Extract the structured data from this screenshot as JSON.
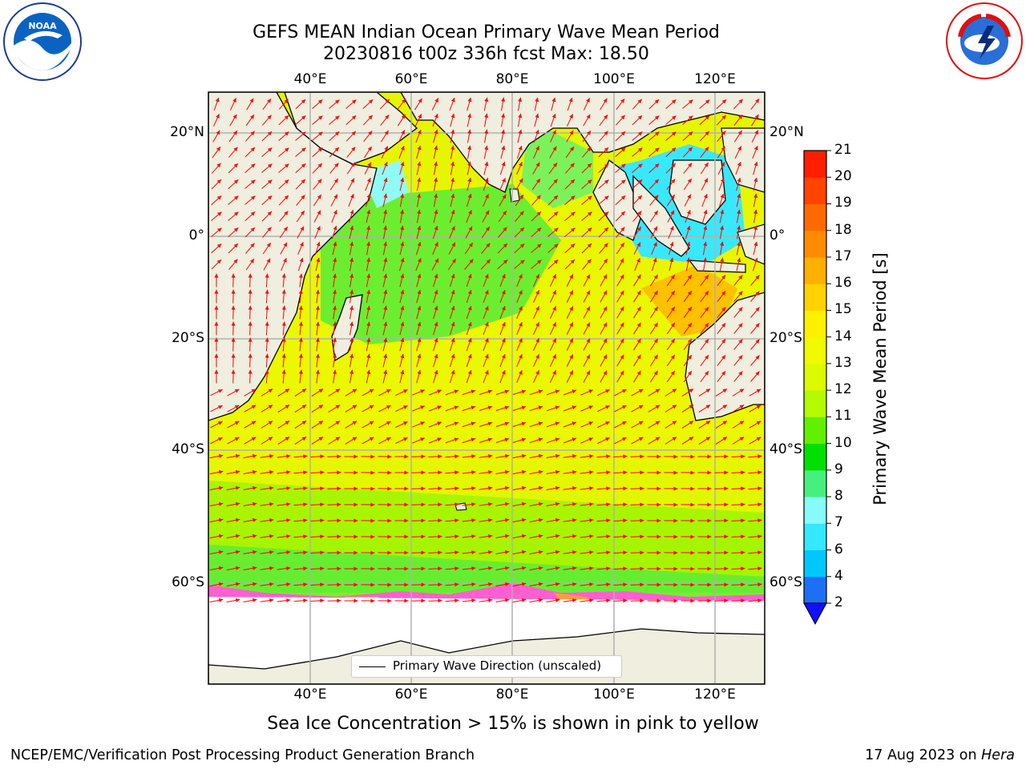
{
  "title_line1": "GEFS MEAN Indian Ocean Primary Wave Mean Period",
  "title_line2": "20230816 t00z 336h fcst   Max: 18.50",
  "lon_ticks": [
    "40°E",
    "60°E",
    "80°E",
    "100°E",
    "120°E"
  ],
  "lat_ticks": [
    "20°N",
    "0°",
    "20°S",
    "40°S",
    "60°S"
  ],
  "colorbar": {
    "label": "Primary Wave Mean Period [s]",
    "ticks": [
      "2",
      "4",
      "6",
      "7",
      "8",
      "9",
      "10",
      "11",
      "12",
      "13",
      "14",
      "15",
      "16",
      "17",
      "18",
      "19",
      "20",
      "21"
    ],
    "colors": [
      "#1f6ff5",
      "#00c8ff",
      "#34e8ff",
      "#86fbfa",
      "#46f07e",
      "#00e000",
      "#60f000",
      "#b4fa00",
      "#dcfa00",
      "#f0fa00",
      "#fff000",
      "#ffd200",
      "#ffb000",
      "#ff8c00",
      "#ff6a00",
      "#ff4400",
      "#ff1e00"
    ],
    "under_color": "#1010ff"
  },
  "legend_label": "Primary Wave Direction (unscaled)",
  "caption": "Sea Ice Concentration > 15% is shown in pink to yellow",
  "footer_left": "NCEP/EMC/Verification Post Processing Product Generation Branch",
  "footer_date": "17 Aug 2023 on ",
  "footer_host": "Hera",
  "logo_left": "NOAA",
  "logo_right": "NATIONAL WEATHER SERVICE",
  "map_colors": {
    "land": "#efeedf",
    "ocean_main": "#e6f800",
    "ocean_south": "#c8f800",
    "arrow": "#ff0000"
  }
}
